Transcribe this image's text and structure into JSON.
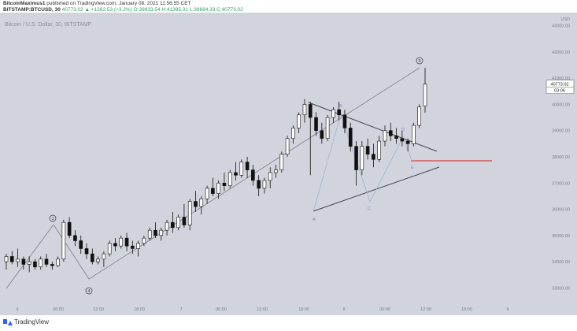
{
  "header": {
    "author": "BitcoinMaximus1",
    "published": "published on TradingView.com, January 08, 2021 11:56:55 CET",
    "symbol": "BITSTAMP:BTCUSD, 30",
    "ohlc": "40773.02 ▲ +1262.53 (+3.2%) O:39933.54 H:41395.31 L:39684.33 C:40773.02"
  },
  "chart_data": {
    "type": "candlestick",
    "watermark": "Bitcoin / U.S. Dollar, 30, BITSTAMP",
    "y_axis": {
      "currency": "USD",
      "range": [
        32500,
        43500
      ],
      "ticks": [
        33000,
        34000,
        35000,
        36000,
        37000,
        38000,
        39000,
        40000,
        41000,
        42000,
        43000
      ],
      "tick_labels": [
        "33000.00",
        "34000.00",
        "35000.00",
        "36000.00",
        "37000.00",
        "38000.00",
        "39000.00",
        "40000.00",
        "41000.00",
        "42000.00",
        "43000.00"
      ]
    },
    "x_axis": {
      "tick_labels": [
        "6",
        "06:00",
        "12:00",
        "18:00",
        "7",
        "06:00",
        "12:00",
        "18:00",
        "8",
        "06:00",
        "12:00",
        "18:00",
        "9"
      ]
    },
    "last_price": {
      "label": "40773.02",
      "countdown": "03:06",
      "value": 40773.02
    },
    "candles": [
      [
        34000,
        34300,
        33700,
        34200
      ],
      [
        34200,
        34400,
        33900,
        34000
      ],
      [
        34000,
        34500,
        33800,
        34100
      ],
      [
        34100,
        34200,
        33700,
        33900
      ],
      [
        33900,
        34200,
        33600,
        34000
      ],
      [
        34000,
        34100,
        33700,
        33800
      ],
      [
        33800,
        34200,
        33700,
        34100
      ],
      [
        34100,
        34300,
        33800,
        33900
      ],
      [
        33900,
        34000,
        33700,
        33850
      ],
      [
        33850,
        34200,
        33800,
        34100
      ],
      [
        34100,
        35600,
        34000,
        35500
      ],
      [
        35500,
        35700,
        34900,
        35000
      ],
      [
        35000,
        35200,
        34600,
        34800
      ],
      [
        34800,
        35000,
        34300,
        34500
      ],
      [
        34500,
        34700,
        34100,
        34300
      ],
      [
        34300,
        34500,
        33900,
        34000
      ],
      [
        34000,
        34200,
        33900,
        34100
      ],
      [
        34100,
        34400,
        33800,
        34300
      ],
      [
        34300,
        34800,
        34200,
        34700
      ],
      [
        34700,
        34900,
        34400,
        34600
      ],
      [
        34600,
        35000,
        34500,
        34900
      ],
      [
        34900,
        35100,
        34400,
        34600
      ],
      [
        34600,
        34800,
        34300,
        34500
      ],
      [
        34500,
        34800,
        34200,
        34700
      ],
      [
        34700,
        35000,
        34600,
        34900
      ],
      [
        34900,
        35300,
        34800,
        35200
      ],
      [
        35200,
        35500,
        34900,
        35000
      ],
      [
        35000,
        35300,
        34800,
        35200
      ],
      [
        35200,
        35600,
        35000,
        35500
      ],
      [
        35500,
        35900,
        35100,
        35300
      ],
      [
        35300,
        35800,
        35200,
        35700
      ],
      [
        35700,
        36200,
        35300,
        35400
      ],
      [
        35400,
        36400,
        35200,
        36300
      ],
      [
        36300,
        36700,
        35900,
        36100
      ],
      [
        36100,
        36500,
        35800,
        36400
      ],
      [
        36400,
        36900,
        36200,
        36800
      ],
      [
        36800,
        37200,
        36500,
        36600
      ],
      [
        36600,
        37100,
        36400,
        37000
      ],
      [
        37000,
        37400,
        36700,
        36900
      ],
      [
        36900,
        37500,
        36800,
        37400
      ],
      [
        37400,
        37800,
        37100,
        37300
      ],
      [
        37300,
        37900,
        37200,
        37800
      ],
      [
        37800,
        38000,
        37200,
        37500
      ],
      [
        37500,
        37700,
        36900,
        37100
      ],
      [
        37100,
        37300,
        36500,
        36800
      ],
      [
        36800,
        37200,
        36600,
        37100
      ],
      [
        37100,
        37600,
        36800,
        37400
      ],
      [
        37400,
        37700,
        37200,
        37500
      ],
      [
        37500,
        38200,
        37400,
        38100
      ],
      [
        38100,
        38800,
        38000,
        38700
      ],
      [
        38700,
        39200,
        38500,
        39100
      ],
      [
        39100,
        39700,
        38900,
        39600
      ],
      [
        39600,
        40200,
        39300,
        40000
      ],
      [
        40000,
        40100,
        37300,
        39500
      ],
      [
        39500,
        39700,
        38800,
        39000
      ],
      [
        39000,
        39300,
        38500,
        38700
      ],
      [
        38700,
        39600,
        38600,
        39500
      ],
      [
        39500,
        39900,
        39300,
        39800
      ],
      [
        39800,
        40100,
        39400,
        39600
      ],
      [
        39600,
        39800,
        38900,
        39100
      ],
      [
        39100,
        39300,
        38200,
        38400
      ],
      [
        38400,
        38600,
        36900,
        37500
      ],
      [
        37500,
        38600,
        37300,
        38400
      ],
      [
        38400,
        38700,
        37900,
        38100
      ],
      [
        38100,
        38500,
        37600,
        37900
      ],
      [
        37900,
        38800,
        37800,
        38600
      ],
      [
        38600,
        39200,
        38400,
        39000
      ],
      [
        39000,
        39300,
        38600,
        38800
      ],
      [
        38800,
        39100,
        38500,
        38700
      ],
      [
        38700,
        39000,
        38400,
        38600
      ],
      [
        38600,
        38700,
        38200,
        38500
      ],
      [
        38500,
        39300,
        38400,
        39200
      ],
      [
        39200,
        40000,
        39100,
        39900
      ],
      [
        39933.54,
        41395.31,
        39684.33,
        40773.02
      ]
    ],
    "annotations": {
      "wave_labels": [
        "1",
        "4",
        "5"
      ],
      "triangle_labels": [
        "A",
        "B",
        "C",
        "D",
        "E"
      ]
    }
  },
  "colors": {
    "background": "#d1d4dc",
    "candle": "#111111",
    "trendline": "#7a7f8c",
    "triangle": "#3f4350",
    "horizontal_line": "#e0191b",
    "wave_path": "#9fb4cf",
    "label_blue": "#6a8bd0"
  },
  "footer": {
    "brand": "TradingView"
  }
}
